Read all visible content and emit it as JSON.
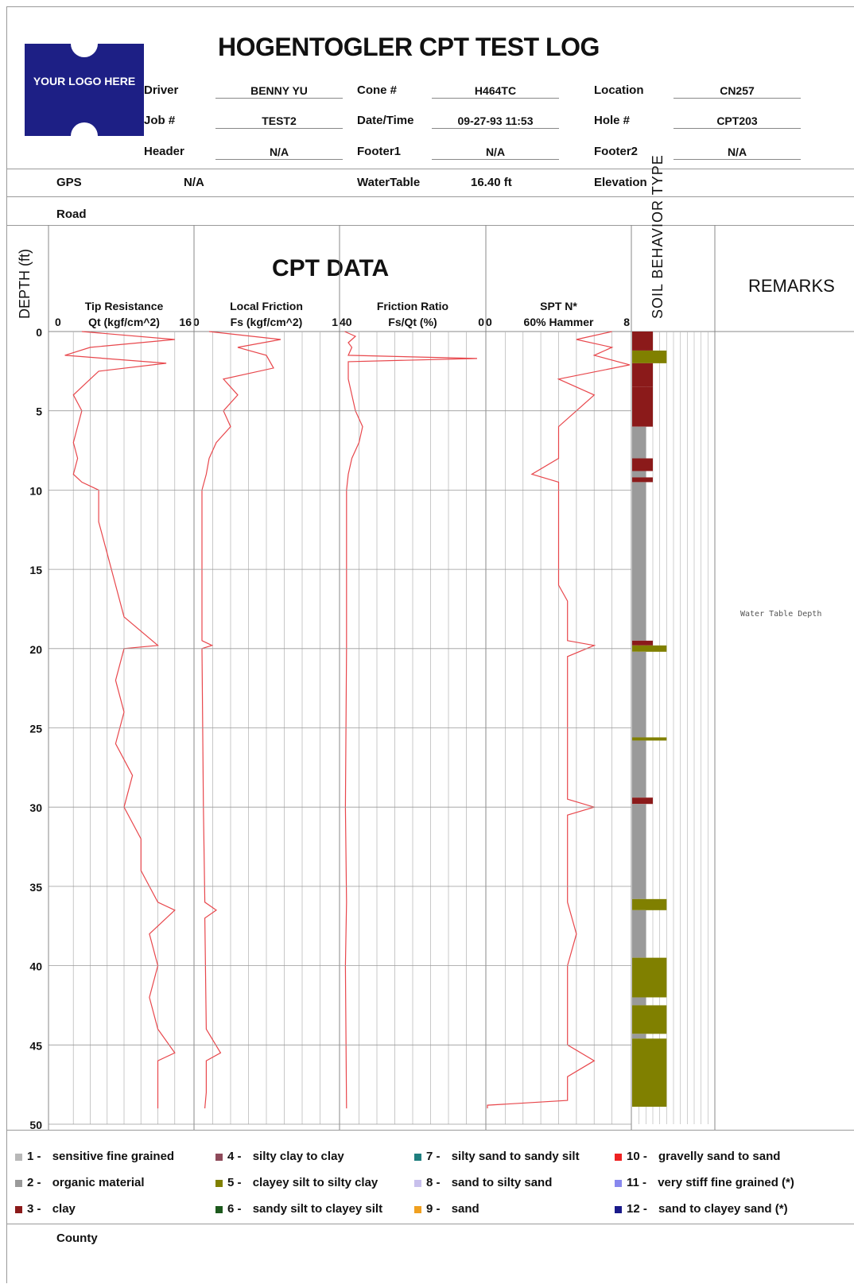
{
  "logo_text": "YOUR LOGO HERE",
  "title": "HOGENTOGLER CPT TEST LOG",
  "header": {
    "rows": [
      [
        {
          "label": "Driver",
          "value": "BENNY YU"
        },
        {
          "label": "Cone #",
          "value": "H464TC"
        },
        {
          "label": "Location",
          "value": "CN257"
        }
      ],
      [
        {
          "label": "Job #",
          "value": "TEST2"
        },
        {
          "label": "Date/Time",
          "value": "09-27-93 11:53"
        },
        {
          "label": "Hole #",
          "value": "CPT203"
        }
      ],
      [
        {
          "label": "Header",
          "value": "N/A"
        },
        {
          "label": "Footer1",
          "value": "N/A"
        },
        {
          "label": "Footer2",
          "value": "N/A"
        }
      ]
    ],
    "gps_label": "GPS",
    "gps_value": "N/A",
    "watertable_label": "WaterTable",
    "watertable_value": "16.40 ft",
    "elevation_label": "Elevation",
    "road_label": "Road",
    "county_label": "County"
  },
  "cpt_title": "CPT DATA",
  "depth_label": "DEPTH (ft)",
  "sbt_label": "SOIL BEHAVIOR TYPE",
  "remarks_label": "REMARKS",
  "remark_note": "Water Table Depth",
  "colors": {
    "trace": "#e8474c",
    "clay": "#8b1a1a",
    "clayey_silt": "#808000",
    "organic": "#9a9a9a",
    "grid": "#9a9a9a"
  },
  "chart_data": {
    "type": "line",
    "depth_axis": {
      "label": "DEPTH (ft)",
      "range": [
        0,
        50
      ],
      "ticks": [
        0,
        5,
        10,
        15,
        20,
        25,
        30,
        35,
        40,
        45,
        50
      ]
    },
    "tracks": [
      {
        "name": "Tip Resistance",
        "units": "Qt (kgf/cm^2)",
        "xmin": "0",
        "xmax": "16",
        "range": [
          0,
          16
        ],
        "profile": [
          [
            0,
            3
          ],
          [
            0.5,
            14
          ],
          [
            1,
            4
          ],
          [
            1.5,
            1
          ],
          [
            2,
            13
          ],
          [
            2.5,
            5
          ],
          [
            3,
            4
          ],
          [
            4,
            2
          ],
          [
            5,
            3
          ],
          [
            6,
            2.5
          ],
          [
            7,
            2
          ],
          [
            8,
            2.5
          ],
          [
            9,
            2
          ],
          [
            9.5,
            3
          ],
          [
            10,
            5
          ],
          [
            12,
            5
          ],
          [
            14,
            6
          ],
          [
            16,
            7
          ],
          [
            18,
            8
          ],
          [
            19.8,
            12
          ],
          [
            20,
            8
          ],
          [
            22,
            7
          ],
          [
            24,
            8
          ],
          [
            26,
            7
          ],
          [
            28,
            9
          ],
          [
            30,
            8
          ],
          [
            32,
            10
          ],
          [
            34,
            10
          ],
          [
            36,
            12
          ],
          [
            36.5,
            14
          ],
          [
            38,
            11
          ],
          [
            40,
            12
          ],
          [
            42,
            11
          ],
          [
            44,
            12
          ],
          [
            45.5,
            14
          ],
          [
            46,
            12
          ],
          [
            48,
            12
          ],
          [
            49,
            12
          ]
        ]
      },
      {
        "name": "Local Friction",
        "units": "Fs (kgf/cm^2)",
        "xmin": "0",
        "xmax": "1",
        "range": [
          0,
          1
        ],
        "profile": [
          [
            0,
            0.1
          ],
          [
            0.5,
            0.6
          ],
          [
            1,
            0.3
          ],
          [
            1.5,
            0.5
          ],
          [
            2.3,
            0.55
          ],
          [
            3,
            0.2
          ],
          [
            4,
            0.3
          ],
          [
            5,
            0.2
          ],
          [
            6,
            0.25
          ],
          [
            7,
            0.15
          ],
          [
            8,
            0.1
          ],
          [
            9,
            0.08
          ],
          [
            10,
            0.05
          ],
          [
            14,
            0.05
          ],
          [
            19.5,
            0.05
          ],
          [
            19.8,
            0.12
          ],
          [
            20,
            0.05
          ],
          [
            30,
            0.06
          ],
          [
            36,
            0.07
          ],
          [
            36.5,
            0.15
          ],
          [
            37,
            0.07
          ],
          [
            44,
            0.08
          ],
          [
            45.5,
            0.18
          ],
          [
            46,
            0.08
          ],
          [
            48,
            0.08
          ],
          [
            49,
            0.07
          ]
        ]
      },
      {
        "name": "Friction Ratio",
        "units": "Fs/Qt (%)",
        "xmin": "40",
        "xmax": "0",
        "range": [
          0,
          40
        ],
        "profile": [
          [
            0,
            1
          ],
          [
            0.3,
            4
          ],
          [
            0.7,
            2
          ],
          [
            1,
            3
          ],
          [
            1.5,
            2
          ],
          [
            1.7,
            38
          ],
          [
            1.9,
            2
          ],
          [
            3,
            2
          ],
          [
            4,
            3
          ],
          [
            5,
            4
          ],
          [
            6,
            6
          ],
          [
            7,
            5
          ],
          [
            8,
            3
          ],
          [
            9,
            2
          ],
          [
            10,
            1.5
          ],
          [
            20,
            1.5
          ],
          [
            30,
            1.2
          ],
          [
            36,
            1.5
          ],
          [
            40,
            1.2
          ],
          [
            49,
            1.5
          ]
        ]
      },
      {
        "name": "SPT N*",
        "units": "60% Hammer",
        "xmin": "0",
        "xmax": "8",
        "range": [
          0,
          8
        ],
        "profile": [
          [
            0,
            7
          ],
          [
            0.5,
            5
          ],
          [
            1,
            7
          ],
          [
            1.5,
            6
          ],
          [
            2.1,
            8
          ],
          [
            3,
            4
          ],
          [
            4,
            6
          ],
          [
            5,
            5
          ],
          [
            6,
            4
          ],
          [
            8,
            4
          ],
          [
            9,
            2.5
          ],
          [
            9.5,
            4
          ],
          [
            12,
            4
          ],
          [
            16,
            4
          ],
          [
            17,
            4.5
          ],
          [
            19.5,
            4.5
          ],
          [
            19.8,
            6
          ],
          [
            20.5,
            4.5
          ],
          [
            26,
            4.5
          ],
          [
            29.5,
            4.5
          ],
          [
            30,
            6
          ],
          [
            30.5,
            4.5
          ],
          [
            36,
            4.5
          ],
          [
            38,
            5
          ],
          [
            40,
            4.5
          ],
          [
            45,
            4.5
          ],
          [
            46,
            6
          ],
          [
            47,
            4.5
          ],
          [
            48.5,
            4.5
          ],
          [
            48.8,
            0
          ],
          [
            49,
            0
          ]
        ]
      }
    ],
    "sbt_bands": [
      {
        "top": 0,
        "bottom": 1.2,
        "type": "clay"
      },
      {
        "top": 1.2,
        "bottom": 2,
        "type": "clayey_silt"
      },
      {
        "top": 2,
        "bottom": 3.5,
        "type": "clay"
      },
      {
        "top": 3.5,
        "bottom": 6,
        "type": "clay"
      },
      {
        "top": 6,
        "bottom": 8,
        "type": "organic"
      },
      {
        "top": 8,
        "bottom": 8.8,
        "type": "clay"
      },
      {
        "top": 8.8,
        "bottom": 9.2,
        "type": "organic"
      },
      {
        "top": 9.2,
        "bottom": 9.5,
        "type": "clay"
      },
      {
        "top": 9.5,
        "bottom": 19.5,
        "type": "organic"
      },
      {
        "top": 19.5,
        "bottom": 19.8,
        "type": "clay"
      },
      {
        "top": 19.8,
        "bottom": 20.2,
        "type": "clayey_silt"
      },
      {
        "top": 20.2,
        "bottom": 25.6,
        "type": "organic"
      },
      {
        "top": 25.6,
        "bottom": 25.8,
        "type": "clayey_silt"
      },
      {
        "top": 25.8,
        "bottom": 29.4,
        "type": "organic"
      },
      {
        "top": 29.4,
        "bottom": 29.8,
        "type": "clay"
      },
      {
        "top": 29.8,
        "bottom": 35.8,
        "type": "organic"
      },
      {
        "top": 35.8,
        "bottom": 36.5,
        "type": "clayey_silt"
      },
      {
        "top": 36.5,
        "bottom": 39.5,
        "type": "organic"
      },
      {
        "top": 39.5,
        "bottom": 42,
        "type": "clayey_silt"
      },
      {
        "top": 42,
        "bottom": 42.5,
        "type": "organic"
      },
      {
        "top": 42.5,
        "bottom": 44.3,
        "type": "clayey_silt"
      },
      {
        "top": 44.3,
        "bottom": 44.6,
        "type": "organic"
      },
      {
        "top": 44.6,
        "bottom": 48.9,
        "type": "clayey_silt"
      }
    ]
  },
  "legend": [
    {
      "num": "1 -",
      "label": "sensitive fine grained",
      "color": "#b8b8b8"
    },
    {
      "num": "2 -",
      "label": "organic material",
      "color": "#9a9a9a"
    },
    {
      "num": "3 -",
      "label": "clay",
      "color": "#8b1a1a"
    },
    {
      "num": "4 -",
      "label": "silty clay to clay",
      "color": "#8e4a5a"
    },
    {
      "num": "5 -",
      "label": "clayey silt to silty clay",
      "color": "#808000"
    },
    {
      "num": "6 -",
      "label": "sandy silt to clayey silt",
      "color": "#1d5a1d"
    },
    {
      "num": "7 -",
      "label": "silty sand to sandy silt",
      "color": "#1f7f7f"
    },
    {
      "num": "8 -",
      "label": "sand to silty sand",
      "color": "#c8c0ec"
    },
    {
      "num": "9 -",
      "label": "sand",
      "color": "#f0a020"
    },
    {
      "num": "10 -",
      "label": "gravelly sand to sand",
      "color": "#ee2222"
    },
    {
      "num": "11 -",
      "label": "very stiff fine grained (*)",
      "color": "#8888ee"
    },
    {
      "num": "12 -",
      "label": "sand to clayey sand (*)",
      "color": "#1a1a8a"
    }
  ]
}
